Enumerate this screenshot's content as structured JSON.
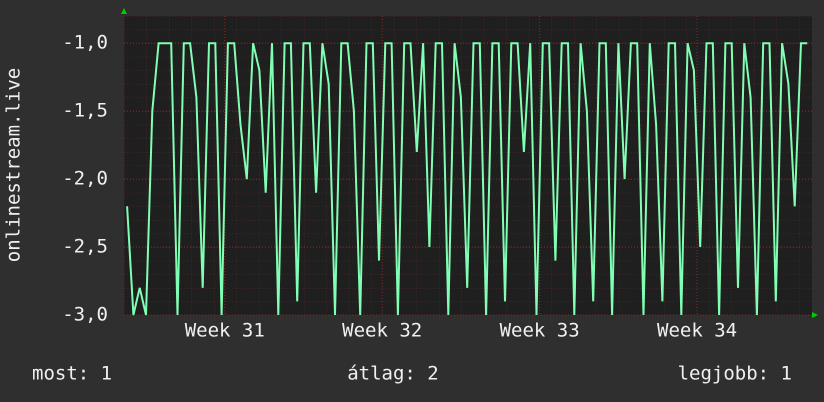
{
  "chart_data": {
    "type": "line",
    "ylabel": "onlinestream.live",
    "x": [
      30.38,
      30.42,
      30.46,
      30.5,
      30.54,
      30.58,
      30.62,
      30.66,
      30.7,
      30.74,
      30.78,
      30.82,
      30.86,
      30.9,
      30.94,
      30.98,
      31.02,
      31.06,
      31.1,
      31.14,
      31.18,
      31.22,
      31.26,
      31.3,
      31.34,
      31.38,
      31.42,
      31.46,
      31.5,
      31.54,
      31.58,
      31.62,
      31.66,
      31.7,
      31.74,
      31.78,
      31.82,
      31.86,
      31.9,
      31.94,
      31.98,
      32.02,
      32.06,
      32.1,
      32.14,
      32.18,
      32.22,
      32.26,
      32.3,
      32.34,
      32.38,
      32.42,
      32.46,
      32.5,
      32.54,
      32.58,
      32.62,
      32.66,
      32.7,
      32.74,
      32.78,
      32.82,
      32.86,
      32.9,
      32.94,
      32.98,
      33.02,
      33.06,
      33.1,
      33.14,
      33.18,
      33.22,
      33.26,
      33.3,
      33.34,
      33.38,
      33.42,
      33.46,
      33.5,
      33.54,
      33.58,
      33.62,
      33.66,
      33.7,
      33.74,
      33.78,
      33.82,
      33.86,
      33.9,
      33.94,
      33.98,
      34.02,
      34.06,
      34.1,
      34.14,
      34.18,
      34.22,
      34.26,
      34.3,
      34.34,
      34.38,
      34.42,
      34.46,
      34.5,
      34.54,
      34.58,
      34.62,
      34.66,
      34.7
    ],
    "values": [
      -2.2,
      -3,
      -2.8,
      -3,
      -1.5,
      -1,
      -1,
      -1,
      -3,
      -1,
      -1,
      -1.4,
      -2.8,
      -1,
      -1,
      -3,
      -1,
      -1,
      -1.6,
      -2,
      -1,
      -1.2,
      -2.1,
      -1,
      -3,
      -1,
      -1,
      -2.9,
      -1,
      -1,
      -2.1,
      -1,
      -1.3,
      -3,
      -1,
      -1,
      -1.5,
      -3,
      -1,
      -1,
      -2.6,
      -1,
      -1,
      -3,
      -1,
      -1,
      -1.8,
      -1,
      -2.5,
      -1,
      -1,
      -3,
      -1,
      -1.4,
      -2.8,
      -1,
      -1,
      -3,
      -1,
      -1,
      -2.9,
      -1,
      -1,
      -1.8,
      -1,
      -3,
      -1,
      -1,
      -2.6,
      -1,
      -1,
      -3,
      -1,
      -1.5,
      -2.9,
      -1,
      -1,
      -3,
      -1,
      -2,
      -1,
      -1,
      -3,
      -1,
      -1.6,
      -2.9,
      -1,
      -1,
      -3,
      -1,
      -1.2,
      -2.5,
      -1,
      -1,
      -3,
      -1,
      -1,
      -2.8,
      -1,
      -1.4,
      -3,
      -1,
      -1,
      -2.9,
      -1,
      -1.3,
      -2.2,
      -1,
      -1
    ],
    "color": "#80ffb4",
    "xlim": [
      30.36,
      34.73
    ],
    "xticks": [
      {
        "value": 31,
        "label": "Week 31"
      },
      {
        "value": 32,
        "label": "Week 32"
      },
      {
        "value": 33,
        "label": "Week 33"
      },
      {
        "value": 34,
        "label": "Week 34"
      }
    ],
    "ylim": [
      -3,
      -0.8
    ],
    "yticks": [
      {
        "value": -3,
        "label": "-3,0"
      },
      {
        "value": -2.5,
        "label": "-2,5"
      },
      {
        "value": -2,
        "label": "-2,0"
      },
      {
        "value": -1.5,
        "label": "-1,5"
      },
      {
        "value": -1,
        "label": "-1,0"
      }
    ],
    "grid": true,
    "stats": [
      "most: 1",
      "átlag: 2",
      "legjobb: 1"
    ]
  }
}
